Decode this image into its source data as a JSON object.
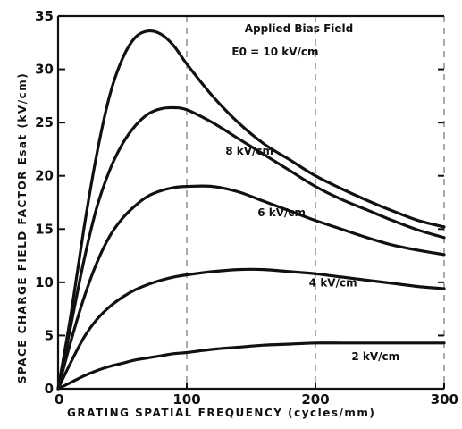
{
  "chart_data": {
    "type": "line",
    "title": "",
    "xlabel": "GRATING SPATIAL FREQUENCY (cycles/mm)",
    "ylabel": "SPACE CHARGE FIELD FACTOR Esat (kV/cm)",
    "xlim": [
      0,
      300
    ],
    "ylim": [
      0,
      35
    ],
    "x_ticks": [
      0,
      100,
      200,
      300
    ],
    "y_ticks": [
      0,
      5,
      10,
      15,
      20,
      25,
      30,
      35
    ],
    "x_tick_labels": [
      "0",
      "100",
      "200",
      "300"
    ],
    "y_tick_labels": [
      "0",
      "5",
      "10",
      "15",
      "20",
      "25",
      "30",
      "35"
    ],
    "grid": "dashed vertical at 100 and 200",
    "legend": "none",
    "annotations": [
      {
        "text": "Applied Bias Field",
        "x": 145,
        "y": 33.5
      },
      {
        "text": "E0 = 10 kV/cm",
        "x": 135,
        "y": 31.3
      },
      {
        "text": "8 kV/cm",
        "x": 130,
        "y": 22.0
      },
      {
        "text": "6 kV/cm",
        "x": 155,
        "y": 16.2
      },
      {
        "text": "4 kV/cm",
        "x": 195,
        "y": 9.6
      },
      {
        "text": "2 kV/cm",
        "x": 228,
        "y": 2.7
      }
    ],
    "series": [
      {
        "name": "E0 = 10 kV/cm",
        "x": [
          0,
          10,
          20,
          30,
          40,
          50,
          60,
          70,
          80,
          90,
          100,
          120,
          140,
          160,
          180,
          200,
          220,
          240,
          260,
          280,
          300
        ],
        "y": [
          0,
          7,
          15,
          22,
          27.5,
          31,
          33,
          33.6,
          33.3,
          32.2,
          30.5,
          27.5,
          25,
          23,
          21.5,
          20,
          18.8,
          17.7,
          16.7,
          15.8,
          15.2
        ]
      },
      {
        "name": "8 kV/cm",
        "x": [
          0,
          10,
          20,
          30,
          40,
          50,
          60,
          70,
          80,
          90,
          100,
          120,
          140,
          160,
          180,
          200,
          220,
          240,
          260,
          280,
          300
        ],
        "y": [
          0,
          6,
          12,
          17,
          20.5,
          23,
          24.7,
          25.8,
          26.3,
          26.4,
          26.2,
          25,
          23.5,
          22,
          20.5,
          19,
          17.8,
          16.8,
          15.8,
          14.9,
          14.2
        ]
      },
      {
        "name": "6 kV/cm",
        "x": [
          0,
          10,
          20,
          30,
          40,
          50,
          60,
          70,
          80,
          90,
          100,
          120,
          140,
          160,
          180,
          200,
          220,
          240,
          260,
          280,
          300
        ],
        "y": [
          0,
          4.5,
          8.5,
          11.8,
          14.3,
          16,
          17.2,
          18.1,
          18.6,
          18.9,
          19,
          19,
          18.5,
          17.6,
          16.7,
          15.8,
          15,
          14.2,
          13.5,
          13,
          12.6
        ]
      },
      {
        "name": "4 kV/cm",
        "x": [
          0,
          10,
          20,
          30,
          40,
          50,
          60,
          70,
          80,
          90,
          100,
          120,
          140,
          160,
          180,
          200,
          220,
          240,
          260,
          280,
          300
        ],
        "y": [
          0,
          2.5,
          4.8,
          6.5,
          7.7,
          8.6,
          9.3,
          9.8,
          10.2,
          10.5,
          10.7,
          11,
          11.2,
          11.2,
          11,
          10.8,
          10.5,
          10.2,
          9.9,
          9.6,
          9.4
        ]
      },
      {
        "name": "2 kV/cm",
        "x": [
          0,
          10,
          20,
          30,
          40,
          50,
          60,
          70,
          80,
          90,
          100,
          120,
          140,
          160,
          180,
          200,
          220,
          240,
          260,
          280,
          300
        ],
        "y": [
          0,
          0.6,
          1.2,
          1.7,
          2.1,
          2.4,
          2.7,
          2.9,
          3.1,
          3.3,
          3.4,
          3.7,
          3.9,
          4.1,
          4.2,
          4.3,
          4.3,
          4.3,
          4.3,
          4.3,
          4.3
        ]
      }
    ]
  }
}
